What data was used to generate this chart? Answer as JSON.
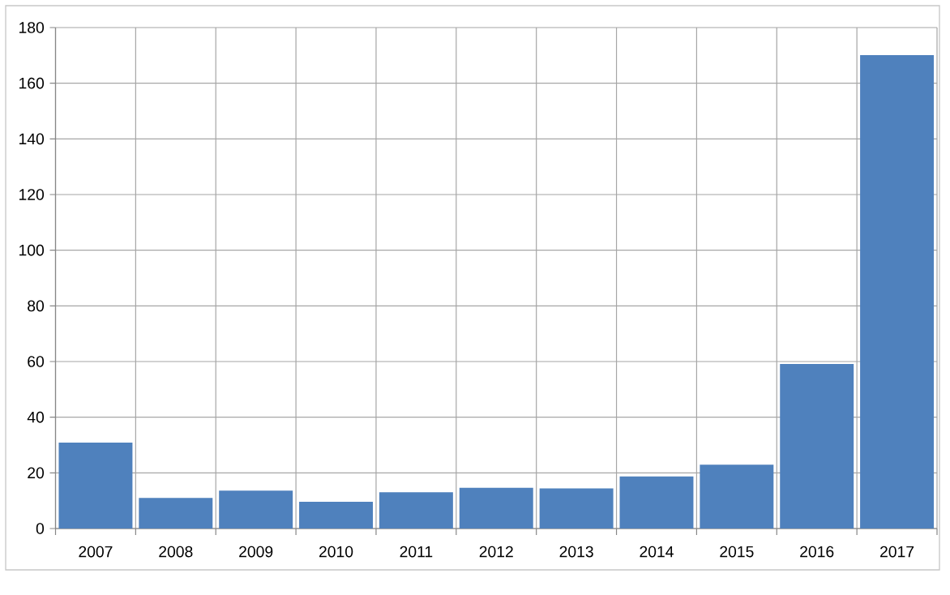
{
  "chart_data": {
    "type": "bar",
    "categories": [
      "2007",
      "2008",
      "2009",
      "2010",
      "2011",
      "2012",
      "2013",
      "2014",
      "2015",
      "2016",
      "2017"
    ],
    "values": [
      30.9,
      11.0,
      13.6,
      9.6,
      13.0,
      14.6,
      14.4,
      18.7,
      22.9,
      59.1,
      170.1
    ],
    "color": "#4f81bd",
    "ylim": [
      0,
      180
    ],
    "yticks": [
      0,
      20,
      40,
      60,
      80,
      100,
      120,
      140,
      160,
      180
    ],
    "grid": true
  }
}
